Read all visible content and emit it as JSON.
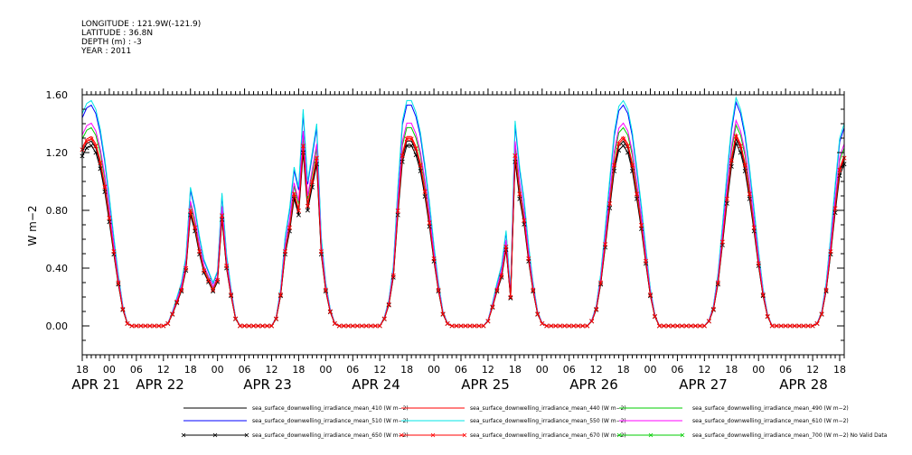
{
  "header": {
    "longitude": "LONGITUDE : 121.9W(-121.9)",
    "latitude": "LATITUDE : 36.8N",
    "depth": "DEPTH (m) : -3",
    "year": "YEAR : 2011"
  },
  "chart_data": {
    "type": "line",
    "title": "",
    "xlabel": "",
    "ylabel": "W m−2",
    "ylim": [
      -0.2,
      1.6
    ],
    "yticks": [
      "0.00",
      "0.40",
      "0.80",
      "1.20",
      "1.60"
    ],
    "xlim_hours": [
      0,
      169
    ],
    "x_units": "hours since APR 21 18:00",
    "hour_tick_labels": [
      "18",
      "00",
      "06",
      "12",
      "18",
      "00",
      "06",
      "12",
      "18",
      "00",
      "06",
      "12",
      "18",
      "00",
      "06",
      "12",
      "18",
      "00",
      "06",
      "12",
      "18",
      "00",
      "06",
      "12",
      "18",
      "00",
      "06",
      "12",
      "18"
    ],
    "date_labels": [
      "APR 21",
      "APR 22",
      "APR 23",
      "APR 24",
      "APR 25",
      "APR 26",
      "APR 27",
      "APR 28"
    ],
    "series": [
      {
        "name": "sea_surface_downwelling_irradiance_mean_410 (W m−2)",
        "color": "#000000",
        "scale": 0.82
      },
      {
        "name": "sea_surface_downwelling_irradiance_mean_440 (W m−2)",
        "color": "#ff0000",
        "scale": 0.84
      },
      {
        "name": "sea_surface_downwelling_irradiance_mean_490 (W m−2)",
        "color": "#00cc00",
        "scale": 0.88
      },
      {
        "name": "sea_surface_downwelling_irradiance_mean_510 (W m−2)",
        "color": "#0000ff",
        "scale": 0.98
      },
      {
        "name": "sea_surface_downwelling_irradiance_mean_550 (W m−2)",
        "color": "#00e5e5",
        "scale": 1.0
      },
      {
        "name": "sea_surface_downwelling_irradiance_mean_610 (W m−2)",
        "color": "#ff00ff",
        "scale": 0.9
      },
      {
        "name": "sea_surface_downwelling_irradiance_mean_650 (W m−2)",
        "color": "#000000",
        "scale": 0.8,
        "marker": "x"
      },
      {
        "name": "sea_surface_downwelling_irradiance_mean_670 (W m−2)",
        "color": "#ff0000",
        "scale": 0.83,
        "marker": "x"
      },
      {
        "name": "sea_surface_downwelling_irradiance_mean_700 (W m−2) No Valid Data",
        "color": "#00cc00",
        "scale": 0,
        "marker": "x"
      }
    ],
    "reference_550": {
      "hours": [
        0,
        1,
        2,
        3,
        4,
        5,
        6,
        7,
        8,
        9,
        10,
        11,
        12,
        13,
        14,
        15,
        16,
        17,
        18,
        19,
        20,
        21,
        22,
        23,
        24,
        25,
        26,
        27,
        28,
        29,
        30,
        31,
        32,
        33,
        34,
        35,
        36,
        37,
        38,
        39,
        40,
        41,
        42,
        43,
        44,
        45,
        46,
        47,
        48,
        49,
        50,
        51,
        52,
        53,
        54,
        55,
        56,
        57,
        58,
        59,
        60,
        61,
        62,
        63,
        64,
        65,
        66,
        67,
        68,
        69,
        70,
        71,
        72,
        73,
        74,
        75,
        76,
        77,
        78,
        79,
        80,
        81,
        82,
        83,
        84,
        85,
        86,
        87,
        88,
        89,
        90,
        91,
        92,
        93,
        94,
        95,
        96,
        97,
        98,
        99,
        100,
        101,
        102,
        103,
        104,
        105,
        106,
        107,
        108,
        109,
        110,
        111,
        112,
        113,
        114,
        115,
        116,
        117,
        118,
        119,
        120,
        121,
        122,
        123,
        124,
        125,
        126,
        127,
        128,
        129,
        130,
        131,
        132,
        133,
        134,
        135,
        136,
        137,
        138,
        139,
        140,
        141,
        142,
        143,
        144,
        145,
        146,
        147,
        148,
        149,
        150,
        151,
        152,
        153,
        154,
        155,
        156,
        157,
        158,
        159,
        160,
        161,
        162,
        163,
        164,
        165,
        166,
        167,
        168,
        169
      ],
      "values": [
        1.47,
        1.54,
        1.56,
        1.5,
        1.36,
        1.16,
        0.9,
        0.62,
        0.36,
        0.14,
        0.02,
        0,
        0,
        0,
        0,
        0,
        0,
        0,
        0,
        0.02,
        0.1,
        0.2,
        0.3,
        0.48,
        0.96,
        0.82,
        0.62,
        0.46,
        0.38,
        0.3,
        0.38,
        0.92,
        0.5,
        0.26,
        0.06,
        0,
        0,
        0,
        0,
        0,
        0,
        0,
        0,
        0.06,
        0.26,
        0.62,
        0.82,
        1.1,
        0.96,
        1.5,
        1.0,
        1.2,
        1.4,
        0.62,
        0.3,
        0.12,
        0.02,
        0,
        0,
        0,
        0,
        0,
        0,
        0,
        0,
        0,
        0,
        0.06,
        0.18,
        0.42,
        0.96,
        1.42,
        1.56,
        1.56,
        1.48,
        1.34,
        1.12,
        0.86,
        0.56,
        0.3,
        0.1,
        0.02,
        0,
        0,
        0,
        0,
        0,
        0,
        0,
        0,
        0.04,
        0.16,
        0.3,
        0.42,
        0.66,
        0.24,
        1.42,
        1.1,
        0.88,
        0.56,
        0.3,
        0.1,
        0.02,
        0,
        0,
        0,
        0,
        0,
        0,
        0,
        0,
        0,
        0,
        0.04,
        0.14,
        0.36,
        0.68,
        1.02,
        1.34,
        1.52,
        1.56,
        1.5,
        1.34,
        1.1,
        0.84,
        0.54,
        0.26,
        0.08,
        0,
        0,
        0,
        0,
        0,
        0,
        0,
        0,
        0,
        0,
        0,
        0.04,
        0.14,
        0.36,
        0.7,
        1.06,
        1.38,
        1.58,
        1.5,
        1.34,
        1.1,
        0.82,
        0.52,
        0.26,
        0.08,
        0,
        0,
        0,
        0,
        0,
        0,
        0,
        0,
        0,
        0,
        0.02,
        0.1,
        0.3,
        0.62,
        0.98,
        1.3,
        1.4
      ]
    }
  }
}
